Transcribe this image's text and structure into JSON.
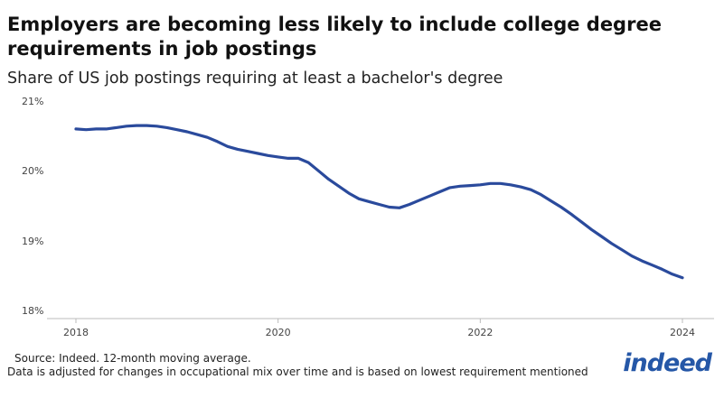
{
  "title": "Employers are becoming less likely to include college degree requirements in job postings",
  "subtitle": "Share of US job postings requiring at least a bachelor's degree",
  "source": "Source: Indeed. 12-month moving average.",
  "note": "Data is adjusted for changes in occupational mix over time and is based on lowest requirement mentioned",
  "logo_text": "indeed",
  "colors": {
    "line": "#2a4a9c",
    "logo": "#2557a7",
    "axis": "#bbbbbb"
  },
  "chart_data": {
    "type": "line",
    "title": "Employers are becoming less likely to include college degree requirements in job postings",
    "subtitle": "Share of US job postings requiring at least a bachelor's degree",
    "xlabel": "",
    "ylabel": "",
    "x_ticks": [
      "2018",
      "2020",
      "2022",
      "2024"
    ],
    "y_ticks": [
      "18%",
      "19%",
      "20%",
      "21%"
    ],
    "xlim": [
      2018,
      2024
    ],
    "ylim": [
      18,
      21
    ],
    "grid": false,
    "series": [
      {
        "x": [
          2018.0,
          2018.1,
          2018.2,
          2018.3,
          2018.4,
          2018.5,
          2018.6,
          2018.7,
          2018.8,
          2018.9,
          2019.0,
          2019.1,
          2019.2,
          2019.3,
          2019.4,
          2019.5,
          2019.6,
          2019.7,
          2019.8,
          2019.9,
          2020.0,
          2020.1,
          2020.2,
          2020.3,
          2020.4,
          2020.5,
          2020.6,
          2020.7,
          2020.8,
          2020.9,
          2021.0,
          2021.1,
          2021.2,
          2021.3,
          2021.4,
          2021.5,
          2021.6,
          2021.7,
          2021.8,
          2021.9,
          2022.0,
          2022.1,
          2022.2,
          2022.3,
          2022.4,
          2022.5,
          2022.6,
          2022.7,
          2022.8,
          2022.9,
          2023.0,
          2023.1,
          2023.2,
          2023.3,
          2023.4,
          2023.5,
          2023.6,
          2023.7,
          2023.8,
          2023.9,
          2024.0
        ],
        "values": [
          20.6,
          20.59,
          20.6,
          20.6,
          20.62,
          20.64,
          20.65,
          20.65,
          20.64,
          20.62,
          20.59,
          20.56,
          20.52,
          20.48,
          20.42,
          20.35,
          20.31,
          20.28,
          20.25,
          20.22,
          20.2,
          20.18,
          20.18,
          20.12,
          20.0,
          19.88,
          19.78,
          19.68,
          19.6,
          19.56,
          19.52,
          19.48,
          19.47,
          19.52,
          19.58,
          19.64,
          19.7,
          19.76,
          19.78,
          19.79,
          19.8,
          19.82,
          19.82,
          19.8,
          19.77,
          19.73,
          19.66,
          19.57,
          19.48,
          19.38,
          19.27,
          19.16,
          19.06,
          18.96,
          18.87,
          18.78,
          18.71,
          18.65,
          18.59,
          18.52,
          18.47
        ]
      }
    ]
  }
}
